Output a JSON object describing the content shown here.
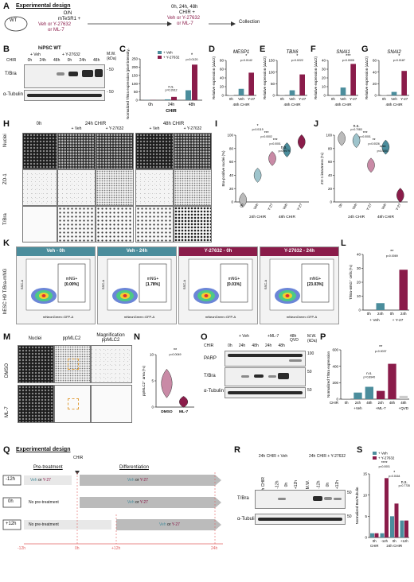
{
  "panels": {
    "A": "A",
    "B": "B",
    "C": "C",
    "D": "D",
    "E": "E",
    "F": "F",
    "G": "G",
    "H": "H",
    "I": "I",
    "J": "J",
    "K": "K",
    "L": "L",
    "M": "M",
    "N": "N",
    "O": "O",
    "P": "P",
    "Q": "Q",
    "R": "R",
    "S": "S"
  },
  "A": {
    "title": "Experimental design",
    "wt": "WT",
    "on": "O/N",
    "medium": "mTeSR1 +",
    "veh_or": "Veh or Y-27632",
    "or_ml7": "or ML-7",
    "then": "0h, 24h, 48h",
    "chir": "CHIR +",
    "veh_or2": "Veh or Y-27632",
    "or_ml72": "or ML-7",
    "collection": "Collection"
  },
  "B": {
    "title": "hiPSC WT",
    "veh": "+ Veh",
    "y27": "+ Y-27632",
    "chir": "CHIR",
    "lanes": [
      "0h",
      "24h",
      "48h",
      "0h",
      "24h",
      "48h"
    ],
    "mw": "M.W.",
    "kda": "(kDa)",
    "m50": "- 50",
    "m50b": "- 50",
    "tbra": "T/Bra",
    "tub": "α-Tubulin"
  },
  "C": {
    "ylabel": "Normalized T/Bra expression (pixel intensity, A.U.)",
    "legend": [
      "+ Veh",
      "+ Y-27632"
    ],
    "x": [
      "0h",
      "24h",
      "48h"
    ],
    "xlabel": "CHIR",
    "ns": "n.s.",
    "p1": "p=0.3912",
    "star": "*",
    "p2": "p=0.0120",
    "ticks": [
      "0",
      "50",
      "100",
      "150",
      "200",
      "250"
    ]
  },
  "qpcr": [
    {
      "id": "D",
      "gene": "MESP1",
      "ticks": [
        "0",
        "20",
        "40",
        "60",
        "80"
      ],
      "star": "*",
      "p": "p=0.0142"
    },
    {
      "id": "E",
      "gene": "TBX6",
      "ticks": [
        "0",
        "50",
        "100",
        "150"
      ],
      "star": "*",
      "p": "p=0.0222"
    },
    {
      "id": "F",
      "gene": "SNAI1",
      "ticks": [
        "0",
        "10",
        "20",
        "30",
        "40"
      ],
      "star": "***",
      "p": "p=0.0005"
    },
    {
      "id": "G",
      "gene": "SNAI2",
      "ticks": [
        "0",
        "20",
        "40",
        "60"
      ],
      "star": "*",
      "p": "p=0.0187"
    }
  ],
  "qpcr_common": {
    "ylabel": "Relative expression (ΔΔCt)",
    "x": [
      "0h",
      "Veh",
      "Y-27"
    ],
    "xlabel": "48h CHIR"
  },
  "H": {
    "cols": [
      "0h",
      "24h CHIR",
      "48h CHIR"
    ],
    "sub": [
      "+ Veh",
      "+ Y-27632",
      "+ Veh",
      "+ Y-27632"
    ],
    "rows": [
      "Nuclei",
      "ZO-1",
      "T/Bra"
    ]
  },
  "I": {
    "ylabel": "Bra-positive nuclei (%)",
    "x": [
      "0h",
      "Veh",
      "Y-27",
      "Veh",
      "Y-27"
    ],
    "groups": [
      "24h CHIR",
      "48h CHIR"
    ],
    "stars": [
      "*",
      "***",
      "***",
      "n.s."
    ],
    "ps": [
      "p=0.0119",
      "p=0.0002",
      "p=0.0001",
      "p=0.9979"
    ],
    "ticks": [
      "0",
      "20",
      "40",
      "60",
      "80",
      "100"
    ]
  },
  "J": {
    "ylabel": "ZO-1 intactness (%)",
    "x": [
      "0h",
      "Veh",
      "Y-27",
      "Veh",
      "Y-27"
    ],
    "groups": [
      "24h CHIR",
      "48h CHIR"
    ],
    "stars": [
      "n.s.",
      "***",
      "**",
      "****"
    ],
    "ps": [
      "p=0.7083",
      "p=0.0001",
      "p=0.0026",
      "p<0.0001"
    ],
    "ticks": [
      "0",
      "20",
      "40",
      "60",
      "80",
      "100"
    ]
  },
  "K": {
    "row": "hESC H9 T/Bra-mNG",
    "headers": [
      "Veh - 0h",
      "Veh - 24h",
      "Y-27632 - 0h",
      "Y-27632 - 24h"
    ],
    "gate": "mNG+",
    "vals": [
      "[0.00%]",
      "[1.78%]",
      "[0.01%]",
      "[23.03%]"
    ],
    "xlab": "mNeonGreen::GFP-A",
    "ylab": "SSC-A"
  },
  "L": {
    "ylabel": "T/Bra-mNG⁺ cells (%)",
    "x": [
      "0h",
      "24h",
      "0h",
      "24h"
    ],
    "groups": [
      "+ Veh",
      "+ Y-27"
    ],
    "star": "**",
    "p": "p=0.0069",
    "ticks": [
      "0",
      "10",
      "20",
      "30",
      "40"
    ]
  },
  "M": {
    "cols": [
      "Nuclei",
      "ppMLC2",
      "Magnification ppMLC2"
    ],
    "rows": [
      "DMSO",
      "ML-7"
    ]
  },
  "N": {
    "ylabel": "ppMLC2⁺ area (%)",
    "x": [
      "DMSO",
      "ML-7"
    ],
    "star": "**",
    "p": "p=0.0049",
    "ticks": [
      "0",
      "5",
      "10"
    ]
  },
  "O": {
    "chir": "CHIR",
    "veh": "+ Veh",
    "ml7": "+ML-7",
    "qvd": "48h QVD",
    "lanes": [
      "0h",
      "24h",
      "48h",
      "24h",
      "48h"
    ],
    "mw": "M.W.",
    "kda": "(kDa)",
    "parp": "PARP",
    "tbra": "T/Bra",
    "tub": "α-Tubulin",
    "m100": "100",
    "m50": "50",
    "m50b": "50"
  },
  "P": {
    "ylabel": "Normalized T/Bra expression",
    "x": [
      "0h",
      "24h",
      "48h",
      "24h",
      "48h",
      "48h"
    ],
    "groups": [
      "+Veh",
      "+ML-7",
      "+QVD"
    ],
    "xlabel": "CHIR",
    "ns": "n.s.",
    "p1": "p=0.8940",
    "star": "**",
    "p2": "p=0.0037",
    "ticks": [
      "0",
      "200",
      "400",
      "600"
    ]
  },
  "Q": {
    "title": "Experimental design",
    "rows": [
      "-12h",
      "0h",
      "+12h"
    ],
    "pre": "Pre-treatment",
    "diff": "Differentiation",
    "chir": "CHIR",
    "veh": "Veh",
    "or": "or",
    "y27": "Y-27",
    "no": "No pre-treatment",
    "axis": [
      "-12h",
      "0h",
      "+12h",
      "24h"
    ]
  },
  "R": {
    "g1": "24h CHIR + Veh",
    "g2": "24h CHIR + Y-27632",
    "lanes": [
      "0h CHIR",
      "-12h",
      "0h",
      "+12h",
      "M.W.",
      "-12h",
      "0h",
      "+12h"
    ],
    "tbra": "T/Bra",
    "tub": "α-Tubulin",
    "m50": "50",
    "m50b": "50"
  },
  "S": {
    "ylabel": "Normalized Bra/Tubulin",
    "legend": [
      "+ Veh",
      "+ Y-27632"
    ],
    "x": [
      "0h",
      "-12h",
      "0h",
      "+12h"
    ],
    "xsub": [
      "CHIR",
      "24h CHIR"
    ],
    "stars": [
      "****",
      "*",
      "n.s."
    ],
    "ps": [
      "p<0.0001",
      "p=0.0164",
      "p=0.7735"
    ],
    "ticks": [
      "0",
      "5",
      "10",
      "15"
    ]
  },
  "colors": {
    "veh": "#4b8d9c",
    "y27": "#8a1c4a",
    "lightgray": "#cccccc",
    "vehlight": "#9ec4cc",
    "y27light": "#c98aa6"
  },
  "chart_data": [
    {
      "type": "bar",
      "id": "C",
      "categories": [
        "0h",
        "24h",
        "48h"
      ],
      "series": [
        {
          "name": "+ Veh",
          "values": [
            1,
            5,
            60
          ]
        },
        {
          "name": "+ Y-27632",
          "values": [
            1,
            20,
            215
          ]
        }
      ],
      "ylim": [
        0,
        250
      ]
    },
    {
      "type": "bar",
      "id": "D",
      "categories": [
        "0h",
        "Veh",
        "Y-27"
      ],
      "values": [
        1,
        15,
        52
      ],
      "ylim": [
        0,
        80
      ]
    },
    {
      "type": "bar",
      "id": "E",
      "categories": [
        "0h",
        "Veh",
        "Y-27"
      ],
      "values": [
        1,
        22,
        90
      ],
      "ylim": [
        0,
        150
      ]
    },
    {
      "type": "bar",
      "id": "F",
      "categories": [
        "0h",
        "Veh",
        "Y-27"
      ],
      "values": [
        1,
        9,
        36
      ],
      "ylim": [
        0,
        40
      ]
    },
    {
      "type": "bar",
      "id": "G",
      "categories": [
        "0h",
        "Veh",
        "Y-27"
      ],
      "values": [
        1,
        6,
        42
      ],
      "ylim": [
        0,
        60
      ]
    },
    {
      "type": "bar",
      "id": "L",
      "categories": [
        "0h",
        "24h",
        "0h",
        "24h"
      ],
      "values": [
        0,
        5,
        0,
        29
      ],
      "ylim": [
        0,
        40
      ]
    },
    {
      "type": "bar",
      "id": "P",
      "categories": [
        "0h",
        "24h",
        "48h",
        "24h",
        "48h",
        "48h"
      ],
      "values": [
        10,
        80,
        150,
        100,
        430,
        40
      ],
      "ylim": [
        0,
        600
      ]
    },
    {
      "type": "bar",
      "id": "S",
      "categories": [
        "0h",
        "-12h",
        "0h",
        "+12h"
      ],
      "series": [
        {
          "name": "+ Veh",
          "values": [
            1,
            1,
            5,
            4
          ]
        },
        {
          "name": "+ Y-27632",
          "values": [
            1,
            14,
            8,
            4
          ]
        }
      ],
      "ylim": [
        0,
        15
      ]
    }
  ]
}
